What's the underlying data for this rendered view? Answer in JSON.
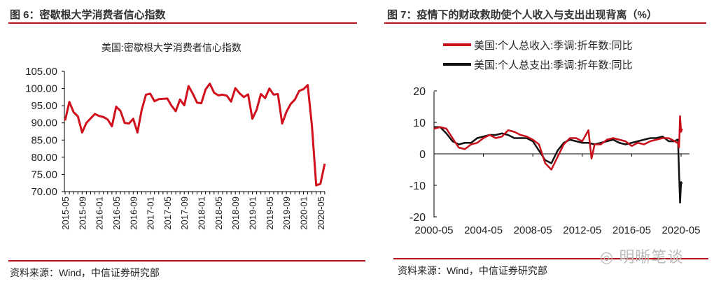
{
  "figures": [
    {
      "title": "图 6：密歇根大学消费者信心指数",
      "source": "资料来源：Wind，中信证券研究部"
    },
    {
      "title": "图 7：疫情下的财政救助使个人收入与支出出现背离（%）",
      "source": "资料来源：Wind，中信证券研究部"
    }
  ],
  "watermark": "明晰笔谈",
  "chart_data": [
    {
      "type": "line",
      "title": "美国:密歇根大学消费者信心指数",
      "ylim": [
        70,
        105
      ],
      "yticks": [
        "105.00",
        "100.00",
        "95.00",
        "90.00",
        "85.00",
        "80.00",
        "75.00",
        "70.00"
      ],
      "xticks": [
        "2015-05",
        "2015-09",
        "2016-01",
        "2016-05",
        "2016-09",
        "2017-01",
        "2017-05",
        "2017-09",
        "2018-01",
        "2018-05",
        "2018-09",
        "2019-01",
        "2019-05",
        "2019-09",
        "2020-01",
        "2020-05"
      ],
      "start": "2015-05",
      "color": "#d0101c",
      "values": [
        90.7,
        96.1,
        93.1,
        91.9,
        87.2,
        90.0,
        91.3,
        92.6,
        92.0,
        91.7,
        91.0,
        89.0,
        94.7,
        93.5,
        90.0,
        89.8,
        91.2,
        87.2,
        93.8,
        98.2,
        98.5,
        96.3,
        96.9,
        97.0,
        97.1,
        95.0,
        93.4,
        96.8,
        95.1,
        100.7,
        98.5,
        95.9,
        95.7,
        99.7,
        101.4,
        98.8,
        98.0,
        98.2,
        97.9,
        96.2,
        100.1,
        98.6,
        97.5,
        98.3,
        91.2,
        93.8,
        98.4,
        97.2,
        100.0,
        98.2,
        98.4,
        89.8,
        93.2,
        95.5,
        96.8,
        99.3,
        99.8,
        101.0,
        89.1,
        71.8,
        72.3,
        78.1
      ]
    },
    {
      "type": "line",
      "ylim": [
        -20,
        20
      ],
      "yticks": [
        "20",
        "10",
        "0",
        "-10",
        "-20"
      ],
      "xticks": [
        "2000-05",
        "2004-05",
        "2008-05",
        "2012-05",
        "2016-05",
        "2020-05"
      ],
      "legend": "top",
      "series": [
        {
          "name": "美国:个人总收入:季调:折年数:同比",
          "color": "#c8101c",
          "points": [
            [
              "2000-05",
              8
            ],
            [
              "2000-11",
              8.5
            ],
            [
              "2001-05",
              8
            ],
            [
              "2001-11",
              5
            ],
            [
              "2002-05",
              2
            ],
            [
              "2002-11",
              1.5
            ],
            [
              "2003-05",
              3
            ],
            [
              "2003-11",
              3.5
            ],
            [
              "2004-05",
              5
            ],
            [
              "2004-11",
              6
            ],
            [
              "2005-05",
              5
            ],
            [
              "2005-11",
              5.5
            ],
            [
              "2006-05",
              7.5
            ],
            [
              "2006-11",
              7
            ],
            [
              "2007-05",
              6
            ],
            [
              "2007-11",
              5.5
            ],
            [
              "2008-05",
              4.5
            ],
            [
              "2008-11",
              3
            ],
            [
              "2009-05",
              -3
            ],
            [
              "2009-11",
              -5
            ],
            [
              "2010-05",
              -1
            ],
            [
              "2010-11",
              3
            ],
            [
              "2011-05",
              5
            ],
            [
              "2011-11",
              5
            ],
            [
              "2012-05",
              4
            ],
            [
              "2012-11",
              7.5
            ],
            [
              "2013-02",
              -1.5
            ],
            [
              "2013-05",
              3
            ],
            [
              "2013-11",
              3
            ],
            [
              "2014-05",
              4.5
            ],
            [
              "2014-11",
              5
            ],
            [
              "2015-05",
              4.5
            ],
            [
              "2015-11",
              4
            ],
            [
              "2016-05",
              2.5
            ],
            [
              "2016-11",
              3.5
            ],
            [
              "2017-05",
              3
            ],
            [
              "2017-11",
              4
            ],
            [
              "2018-05",
              4.5
            ],
            [
              "2018-11",
              5
            ],
            [
              "2019-05",
              5
            ],
            [
              "2019-11",
              4
            ],
            [
              "2020-01",
              3.5
            ],
            [
              "2020-02",
              3.5
            ],
            [
              "2020-03",
              2
            ],
            [
              "2020-04",
              12
            ],
            [
              "2020-05",
              7
            ],
            [
              "2020-06",
              8
            ]
          ]
        },
        {
          "name": "美国:个人总支出:季调:折年数:同比",
          "color": "#111111",
          "points": [
            [
              "2000-05",
              8.5
            ],
            [
              "2000-11",
              8.5
            ],
            [
              "2001-05",
              6.5
            ],
            [
              "2001-11",
              4
            ],
            [
              "2002-05",
              3
            ],
            [
              "2002-11",
              3.5
            ],
            [
              "2003-05",
              3.5
            ],
            [
              "2003-11",
              5
            ],
            [
              "2004-05",
              5.5
            ],
            [
              "2004-11",
              6
            ],
            [
              "2005-05",
              6
            ],
            [
              "2005-11",
              6.5
            ],
            [
              "2006-05",
              6
            ],
            [
              "2006-11",
              5
            ],
            [
              "2007-05",
              5
            ],
            [
              "2007-11",
              5
            ],
            [
              "2008-05",
              4
            ],
            [
              "2008-11",
              1
            ],
            [
              "2009-05",
              -2
            ],
            [
              "2009-11",
              -3
            ],
            [
              "2010-05",
              1
            ],
            [
              "2010-11",
              3.5
            ],
            [
              "2011-05",
              4.5
            ],
            [
              "2011-11",
              4
            ],
            [
              "2012-05",
              3.5
            ],
            [
              "2012-11",
              3.5
            ],
            [
              "2013-05",
              3
            ],
            [
              "2013-11",
              3.5
            ],
            [
              "2014-05",
              4
            ],
            [
              "2014-11",
              4.5
            ],
            [
              "2015-05",
              3.5
            ],
            [
              "2015-11",
              3
            ],
            [
              "2016-05",
              3.5
            ],
            [
              "2016-11",
              4
            ],
            [
              "2017-05",
              4.5
            ],
            [
              "2017-11",
              5
            ],
            [
              "2018-05",
              5
            ],
            [
              "2018-11",
              5.5
            ],
            [
              "2019-05",
              4
            ],
            [
              "2019-11",
              4
            ],
            [
              "2020-01",
              4.5
            ],
            [
              "2020-02",
              4.5
            ],
            [
              "2020-03",
              -6
            ],
            [
              "2020-04",
              -15.5
            ],
            [
              "2020-05",
              -9
            ],
            [
              "2020-06",
              -9.5
            ]
          ]
        }
      ]
    }
  ]
}
